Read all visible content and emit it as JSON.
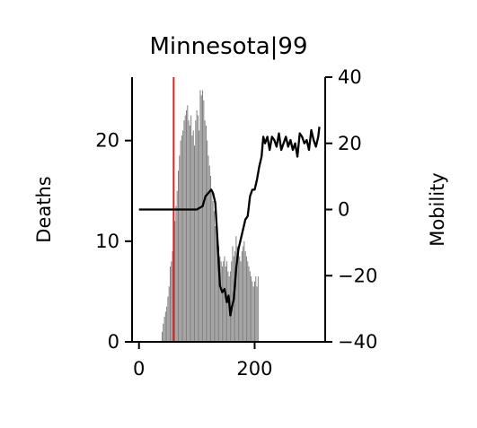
{
  "chart_data": {
    "type": "bar",
    "title": "Minnesota|99",
    "xlabel": "",
    "ylabel": "Deaths",
    "y2label": "Mobility",
    "xlim": [
      -12,
      322
    ],
    "ylim": [
      0,
      26.3
    ],
    "y2lim": [
      -40,
      40
    ],
    "xticks": [
      0,
      200
    ],
    "yticks": [
      0,
      10,
      20
    ],
    "y2ticks": [
      -40,
      -20,
      0,
      20,
      40
    ],
    "grid": false,
    "legend": "none",
    "marker_line": {
      "x": 60,
      "color": "#e02020"
    },
    "colors": {
      "bars": "#808080",
      "mobility_line": "#000000",
      "marker_line": "#e02020"
    },
    "series": [
      {
        "kind": "bar",
        "axis": "left",
        "x": [
          40,
          42,
          44,
          46,
          48,
          50,
          52,
          54,
          56,
          58,
          60,
          62,
          64,
          66,
          68,
          70,
          72,
          74,
          76,
          78,
          80,
          82,
          84,
          86,
          88,
          90,
          92,
          94,
          96,
          98,
          100,
          102,
          104,
          106,
          108,
          110,
          112,
          114,
          116,
          118,
          120,
          122,
          124,
          126,
          128,
          130,
          132,
          134,
          136,
          138,
          140,
          142,
          144,
          146,
          148,
          150,
          152,
          154,
          156,
          158,
          160,
          162,
          164,
          166,
          168,
          170,
          172,
          174,
          176,
          178,
          180,
          182,
          184,
          186,
          188,
          190,
          192,
          194,
          196,
          198,
          200,
          202,
          204,
          206
        ],
        "values": [
          1.0,
          1.8,
          2.5,
          3.0,
          3.5,
          4.5,
          5.5,
          7.5,
          8.0,
          9.0,
          10.0,
          12.0,
          13.5,
          15.0,
          17.0,
          18.5,
          20.0,
          20.5,
          21.0,
          22.0,
          22.5,
          23.0,
          23.5,
          22.0,
          21.5,
          22.5,
          20.5,
          21.0,
          19.5,
          22.0,
          23.0,
          22.5,
          21.0,
          25.0,
          24.5,
          25.0,
          24.0,
          22.0,
          21.5,
          20.0,
          18.5,
          17.5,
          16.5,
          15.0,
          14.0,
          13.0,
          11.5,
          11.0,
          10.5,
          9.5,
          8.5,
          8.0,
          7.5,
          8.0,
          8.5,
          7.5,
          8.0,
          7.0,
          6.5,
          7.0,
          8.0,
          9.5,
          8.5,
          9.0,
          10.5,
          9.5,
          9.0,
          8.5,
          8.0,
          9.0,
          9.5,
          10.0,
          9.0,
          8.5,
          8.0,
          7.5,
          7.0,
          6.5,
          6.0,
          5.5,
          6.0,
          6.5,
          5.5,
          6.5
        ]
      },
      {
        "kind": "line",
        "axis": "right",
        "x": [
          0,
          10,
          20,
          30,
          40,
          50,
          60,
          70,
          80,
          90,
          100,
          105,
          110,
          115,
          120,
          125,
          128,
          132,
          136,
          140,
          144,
          148,
          152,
          155,
          158,
          160,
          164,
          168,
          172,
          176,
          180,
          184,
          188,
          192,
          196,
          200,
          204,
          208,
          212,
          215,
          218,
          222,
          226,
          230,
          234,
          238,
          242,
          246,
          250,
          254,
          258,
          262,
          266,
          270,
          274,
          278,
          282,
          286,
          290,
          294,
          298,
          302,
          306,
          310,
          312
        ],
        "values": [
          0,
          0,
          0,
          0,
          0,
          0,
          0,
          0,
          0,
          0,
          0,
          0.5,
          1,
          4,
          5,
          6,
          5,
          2,
          -10,
          -23,
          -25,
          -24,
          -28,
          -26,
          -32,
          -30,
          -27,
          -18,
          -12,
          -9,
          -6,
          -3,
          -2,
          4,
          6,
          6,
          9,
          13,
          16,
          22,
          20,
          22,
          18,
          22,
          21,
          19,
          23,
          18,
          20,
          22,
          19,
          21,
          18,
          20,
          16,
          23,
          22,
          20,
          21,
          18,
          24,
          21,
          19,
          22,
          25
        ]
      }
    ]
  }
}
